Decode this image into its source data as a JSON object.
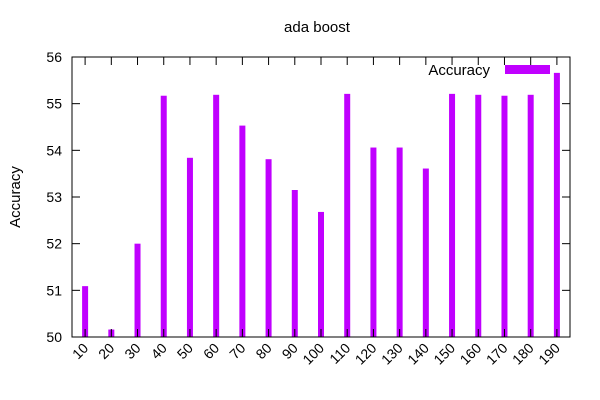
{
  "chart_data": {
    "type": "bar",
    "title": "ada boost",
    "xlabel": "",
    "ylabel": "Accuracy",
    "categories": [
      "10",
      "20",
      "30",
      "40",
      "50",
      "60",
      "70",
      "80",
      "90",
      "100",
      "110",
      "120",
      "130",
      "140",
      "150",
      "160",
      "170",
      "180",
      "190"
    ],
    "series": [
      {
        "name": "Accuracy",
        "color": "#c000ff",
        "values": [
          51.09,
          50.16,
          52.0,
          55.17,
          53.84,
          55.19,
          54.53,
          53.81,
          53.15,
          52.68,
          55.21,
          54.06,
          54.06,
          53.61,
          55.21,
          55.19,
          55.17,
          55.19,
          55.66
        ]
      }
    ],
    "ylim": [
      50,
      56
    ],
    "yticks": [
      50,
      51,
      52,
      53,
      54,
      55,
      56
    ],
    "grid": false,
    "legend": "top-right"
  }
}
